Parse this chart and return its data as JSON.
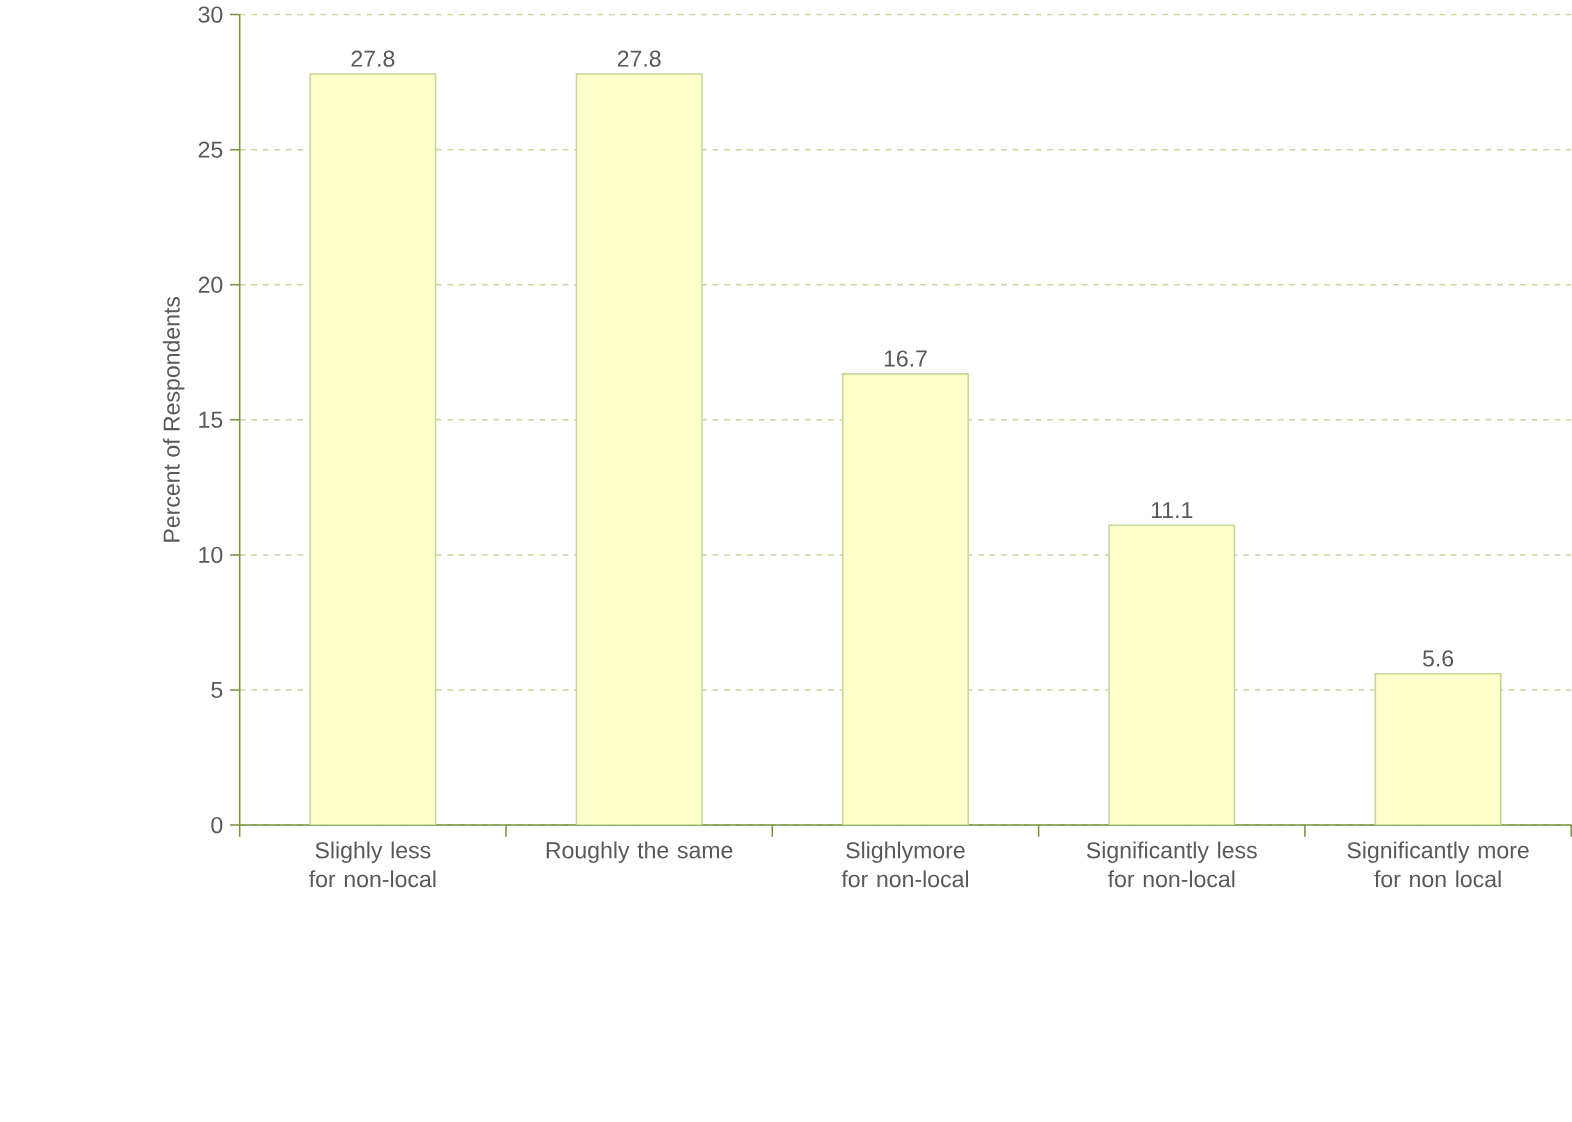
{
  "chart_data": {
    "type": "bar",
    "ylabel": "Percent of Respondents",
    "categories": [
      "Slighly less for non-local",
      "Roughly the same",
      "Slighlymore for non-local",
      "Significantly less for non-local",
      "Significantly more for non local"
    ],
    "values": [
      27.8,
      27.8,
      16.7,
      11.1,
      5.6
    ],
    "color": "#ffffcc",
    "ylim": [
      0,
      30
    ],
    "yticks": [
      0,
      5,
      10,
      15,
      20,
      25,
      30
    ],
    "grid": "y",
    "data_labels": true
  }
}
